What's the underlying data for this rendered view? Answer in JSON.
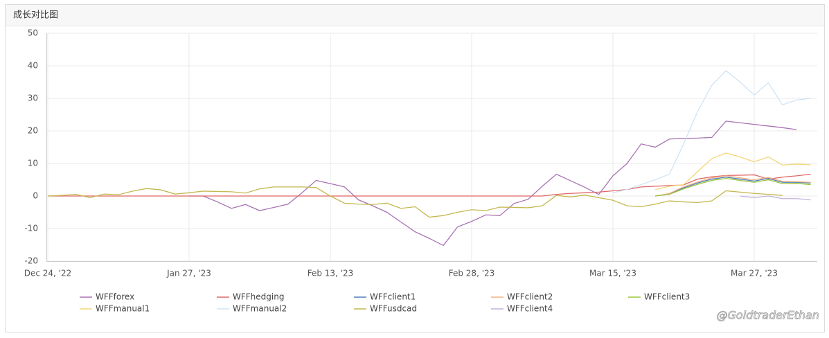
{
  "panel_title": "成长对比图",
  "watermark": "@GoldtraderEthan",
  "chart_data": {
    "type": "line",
    "categories": [
      "Dec 24, '22",
      null,
      null,
      null,
      null,
      null,
      null,
      null,
      null,
      null,
      "Jan 27, '23",
      null,
      null,
      null,
      null,
      null,
      null,
      null,
      null,
      null,
      "Feb 13, '23",
      null,
      null,
      null,
      null,
      null,
      null,
      null,
      null,
      null,
      "Feb 28, '23",
      null,
      null,
      null,
      null,
      null,
      null,
      null,
      null,
      null,
      "Mar 15, '23",
      null,
      null,
      null,
      null,
      null,
      null,
      null,
      null,
      null,
      "Mar 27, '23",
      null,
      null,
      null,
      null
    ],
    "ylim": [
      -20,
      50
    ],
    "yticks": [
      -20,
      -10,
      0,
      10,
      20,
      30,
      40,
      50
    ],
    "grid": true,
    "legend": "bottom",
    "series": [
      {
        "name": "WFFforex",
        "color": "#a873b3",
        "values": [
          null,
          null,
          null,
          null,
          null,
          null,
          null,
          null,
          null,
          null,
          0,
          0,
          -1.8,
          -3.8,
          -2.6,
          -4.5,
          -3.5,
          -2.5,
          1.0,
          4.8,
          3.8,
          2.8,
          -1.2,
          -3.0,
          -5.0,
          -8.0,
          -11.0,
          -13.0,
          -15.2,
          -9.5,
          -7.8,
          -5.8,
          -6.0,
          -2.3,
          -1.0,
          3.0,
          6.7,
          4.7,
          2.7,
          0.5,
          6.2,
          10.0,
          16.0,
          15.0,
          17.5,
          17.7,
          17.8,
          18.0,
          23.0,
          22.5,
          22.0,
          21.5,
          21.0,
          20.4,
          null
        ]
      },
      {
        "name": "WFFhedging",
        "color": "#e06666",
        "values": [
          0,
          0,
          0,
          0,
          0,
          0,
          0,
          0,
          0,
          0,
          0,
          0,
          0,
          0,
          0,
          0,
          0,
          0,
          0,
          0,
          0,
          0,
          0,
          0,
          0,
          0,
          0,
          0,
          0,
          0,
          0,
          0,
          0,
          0,
          0,
          0,
          0.5,
          0.8,
          1.0,
          1.2,
          1.6,
          2.0,
          2.8,
          3.0,
          3.2,
          3.4,
          5.2,
          5.9,
          6.3,
          6.4,
          6.5,
          5.2,
          5.8,
          6.2,
          6.7
        ]
      },
      {
        "name": "WFFclient1",
        "color": "#4f81bd",
        "values": [
          null,
          null,
          null,
          null,
          null,
          null,
          null,
          null,
          null,
          null,
          null,
          null,
          null,
          null,
          null,
          null,
          null,
          null,
          null,
          null,
          null,
          null,
          null,
          null,
          null,
          null,
          null,
          null,
          null,
          null,
          null,
          null,
          null,
          null,
          null,
          null,
          null,
          null,
          null,
          null,
          null,
          null,
          null,
          0,
          0.7,
          2.5,
          4,
          5.2,
          5.8,
          5.2,
          4.6,
          5.4,
          4.2,
          4.2,
          4.0
        ]
      },
      {
        "name": "WFFclient2",
        "color": "#f4b183",
        "values": [
          null,
          null,
          null,
          null,
          null,
          null,
          null,
          null,
          null,
          null,
          null,
          null,
          null,
          null,
          null,
          null,
          null,
          null,
          null,
          null,
          null,
          null,
          null,
          null,
          null,
          null,
          null,
          null,
          null,
          null,
          null,
          null,
          null,
          null,
          null,
          null,
          null,
          null,
          null,
          null,
          null,
          null,
          null,
          0,
          0.8,
          2.8,
          4.3,
          5.6,
          6.2,
          5.6,
          5.0,
          5.7,
          4.5,
          4.4,
          4.2
        ]
      },
      {
        "name": "WFFclient3",
        "color": "#9bc53d",
        "values": [
          null,
          null,
          null,
          null,
          null,
          null,
          null,
          null,
          null,
          null,
          null,
          null,
          null,
          null,
          null,
          null,
          null,
          null,
          null,
          null,
          null,
          null,
          null,
          null,
          null,
          null,
          null,
          null,
          null,
          null,
          null,
          null,
          null,
          null,
          null,
          null,
          null,
          null,
          null,
          null,
          null,
          null,
          null,
          0,
          0.5,
          2.2,
          3.6,
          4.8,
          5.4,
          4.8,
          4.2,
          5.0,
          3.8,
          3.9,
          3.5
        ]
      },
      {
        "name": "WFFmanual1",
        "color": "#f5d67a",
        "values": [
          null,
          null,
          null,
          null,
          null,
          null,
          null,
          null,
          null,
          null,
          null,
          null,
          null,
          null,
          null,
          null,
          null,
          null,
          null,
          null,
          null,
          null,
          null,
          null,
          null,
          null,
          null,
          null,
          null,
          null,
          null,
          null,
          null,
          null,
          null,
          null,
          null,
          null,
          null,
          null,
          null,
          null,
          null,
          2,
          3,
          3.5,
          7.5,
          11.5,
          13.2,
          12,
          10.5,
          12,
          9.5,
          9.8,
          9.6
        ]
      },
      {
        "name": "WFFmanual2",
        "color": "#cfe3f5",
        "values": [
          null,
          null,
          null,
          null,
          null,
          null,
          null,
          null,
          null,
          null,
          null,
          null,
          null,
          null,
          null,
          null,
          null,
          null,
          null,
          null,
          null,
          null,
          null,
          null,
          null,
          null,
          null,
          null,
          null,
          null,
          null,
          null,
          null,
          null,
          null,
          null,
          null,
          null,
          null,
          null,
          1,
          2,
          3.5,
          5,
          6.7,
          16,
          26,
          34,
          38.5,
          35,
          31,
          34.8,
          28,
          29.5,
          30
        ]
      },
      {
        "name": "WFFusdcad",
        "color": "#c4b84e",
        "values": [
          0,
          0.2,
          0.5,
          -0.5,
          0.6,
          0.4,
          1.5,
          2.3,
          1.9,
          0.6,
          1.0,
          1.5,
          1.4,
          1.3,
          0.9,
          2.2,
          2.8,
          2.8,
          2.8,
          2.6,
          0,
          -2.2,
          -2.5,
          -2.6,
          -2.2,
          -3.8,
          -3.3,
          -6.5,
          -6.0,
          -5.0,
          -4.2,
          -4.5,
          -3.4,
          -3.5,
          -3.6,
          -3.0,
          0.2,
          -0.3,
          0.3,
          -0.5,
          -1.3,
          -3.0,
          -3.3,
          -2.5,
          -1.5,
          -1.8,
          -2.0,
          -1.5,
          1.6,
          1.2,
          0.8,
          0.5,
          0.2,
          null,
          null
        ]
      },
      {
        "name": "WFFclient4",
        "color": "#c3b1dc",
        "values": [
          null,
          null,
          null,
          null,
          null,
          null,
          null,
          null,
          null,
          null,
          null,
          null,
          null,
          null,
          null,
          null,
          null,
          null,
          null,
          null,
          null,
          null,
          null,
          null,
          null,
          null,
          null,
          null,
          null,
          null,
          null,
          null,
          null,
          null,
          null,
          null,
          null,
          null,
          null,
          null,
          null,
          null,
          null,
          null,
          null,
          null,
          null,
          null,
          null,
          0,
          -0.5,
          0,
          -0.8,
          -0.8,
          -1.2
        ]
      }
    ]
  }
}
